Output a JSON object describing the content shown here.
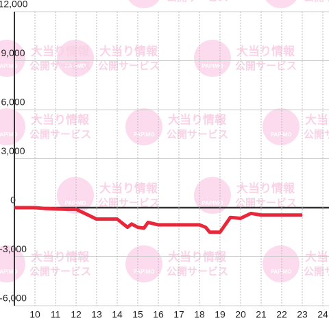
{
  "chart_data": {
    "type": "line",
    "watermark": {
      "line1": "大当り情報",
      "line2": "公開サービス",
      "logo": "PAPIMO"
    },
    "x": [
      9,
      10,
      10.5,
      11.5,
      12,
      12.5,
      13,
      14,
      14.5,
      14.7,
      15,
      15.3,
      15.5,
      16,
      17,
      18,
      18.3,
      18.5,
      19,
      19.5,
      20,
      20.5,
      21,
      22,
      23
    ],
    "series": [
      {
        "color": "#e8273a",
        "values": [
          0,
          0,
          -50,
          -100,
          -100,
          -400,
          -700,
          -700,
          -1200,
          -1000,
          -1200,
          -1250,
          -900,
          -1050,
          -1050,
          -1050,
          -1200,
          -1500,
          -1500,
          -600,
          -650,
          -350,
          -450,
          -450,
          -450
        ]
      }
    ],
    "xlim": [
      9,
      24.3
    ],
    "xticks": [
      10,
      11,
      12,
      13,
      14,
      15,
      16,
      17,
      18,
      19,
      20,
      21,
      22,
      23,
      24
    ],
    "ylim": [
      -6000,
      12000
    ],
    "yticks": [
      {
        "value": -6000,
        "label": "-6,000"
      },
      {
        "value": -3000,
        "label": "-3,000"
      },
      0,
      {
        "value": 3000,
        "label": "3,000"
      },
      {
        "value": 6000,
        "label": "6,000"
      },
      {
        "value": 9000,
        "label": "9,000"
      },
      {
        "value": 12000,
        "label": "12,000"
      }
    ],
    "grid": true
  }
}
